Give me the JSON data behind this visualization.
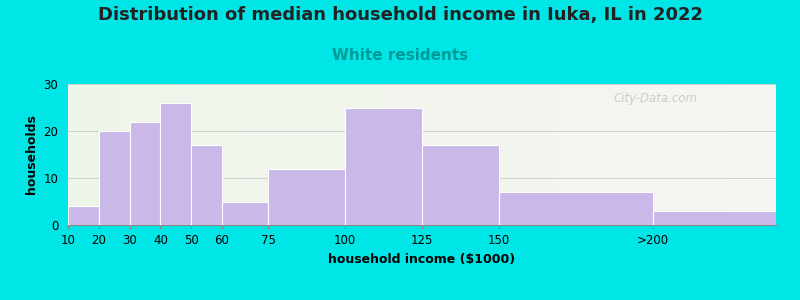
{
  "title": "Distribution of median household income in Iuka, IL in 2022",
  "subtitle": "White residents",
  "xlabel": "household income ($1000)",
  "ylabel": "households",
  "bin_edges": [
    10,
    20,
    30,
    40,
    50,
    60,
    75,
    100,
    125,
    150,
    200,
    240
  ],
  "tick_positions": [
    10,
    20,
    30,
    40,
    50,
    60,
    75,
    100,
    125,
    150,
    200
  ],
  "tick_labels": [
    "10",
    "20",
    "30",
    "40",
    "50",
    "60",
    "75",
    "100",
    "125",
    "150",
    ">200"
  ],
  "bar_values": [
    4,
    20,
    22,
    26,
    17,
    5,
    12,
    25,
    17,
    7,
    3
  ],
  "bar_color": "#c9b8e8",
  "bar_edgecolor": "#ffffff",
  "ylim": [
    0,
    30
  ],
  "yticks": [
    0,
    10,
    20,
    30
  ],
  "xlim": [
    10,
    240
  ],
  "background_color": "#00e5e5",
  "title_fontsize": 13,
  "subtitle_fontsize": 11,
  "subtitle_color": "#009999",
  "axis_label_fontsize": 9,
  "tick_fontsize": 8.5,
  "watermark": "City-Data.com"
}
